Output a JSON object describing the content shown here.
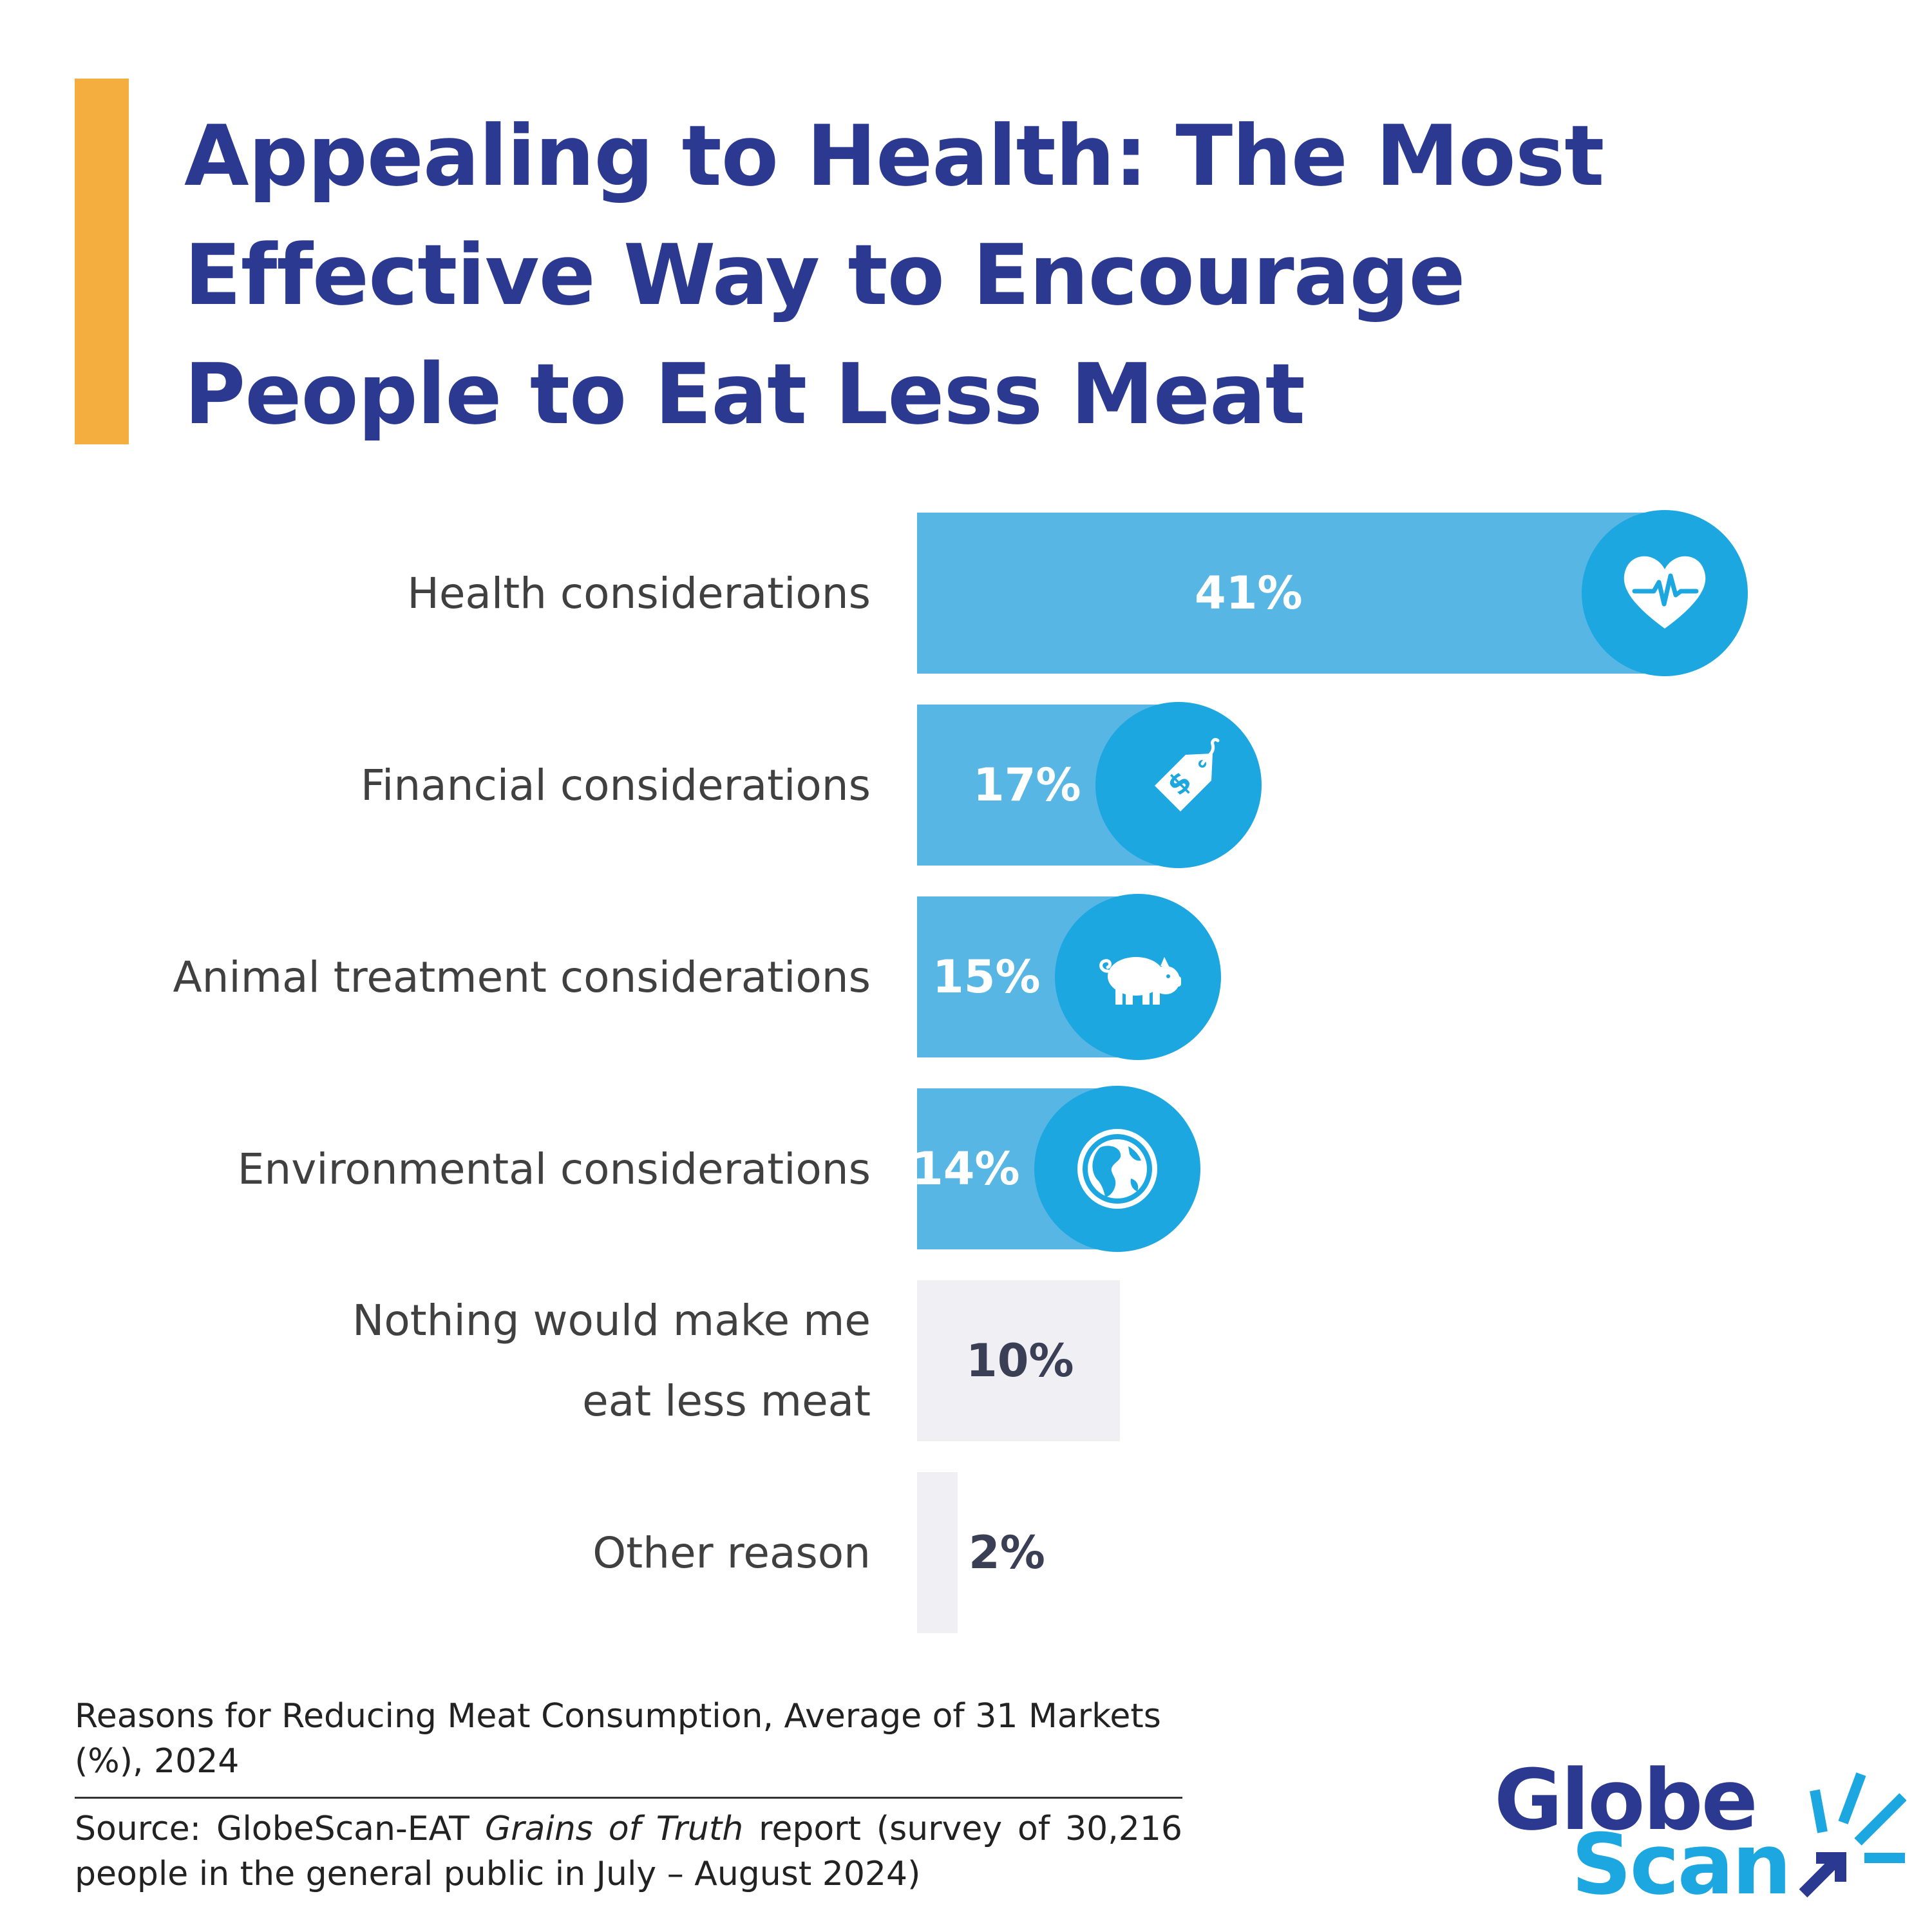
{
  "title_lines": [
    "Appealing to Health: The Most",
    "Effective Way to Encourage",
    "People to Eat Less Meat"
  ],
  "chart_data": {
    "type": "bar",
    "orientation": "horizontal",
    "unit": "%",
    "categories": [
      "Health considerations",
      "Financial considerations",
      "Animal treatment considerations",
      "Environmental considerations",
      "Nothing would make me eat less meat",
      "Other reason"
    ],
    "values": [
      41,
      17,
      15,
      14,
      10,
      2
    ],
    "value_labels": [
      "41%",
      "17%",
      "15%",
      "14%",
      "10%",
      "2%"
    ],
    "category_label_lines": [
      [
        "Health considerations"
      ],
      [
        "Financial considerations"
      ],
      [
        "Animal treatment considerations"
      ],
      [
        "Environmental considerations"
      ],
      [
        "Nothing would make me",
        "eat less meat"
      ],
      [
        "Other reason"
      ]
    ],
    "icons": [
      "heart-pulse-icon",
      "price-tag-icon",
      "pig-icon",
      "globe-icon",
      null,
      null
    ],
    "bar_colors": [
      "#58B6E5",
      "#58B6E5",
      "#58B6E5",
      "#58B6E5",
      "#EFEFF4",
      "#EFEFF4"
    ],
    "badge_color": "#1DA7E0",
    "xlim": [
      0,
      41
    ],
    "grid": false,
    "legend": "none"
  },
  "caption": "Reasons for Reducing Meat Consumption, Average of 31 Markets (%), 2024",
  "source": {
    "prefix": "Source: GlobeScan-EAT ",
    "report_title": "Grains of Truth",
    "suffix": " report (survey of 30,216 people in the general public in July – August 2024)"
  },
  "logo": {
    "line1": "Globe",
    "line2": "Scan",
    "primary_color": "#2B3990",
    "secondary_color": "#1DA7E0"
  },
  "accent_color": "#F4AE3F",
  "title_color": "#2B3990"
}
